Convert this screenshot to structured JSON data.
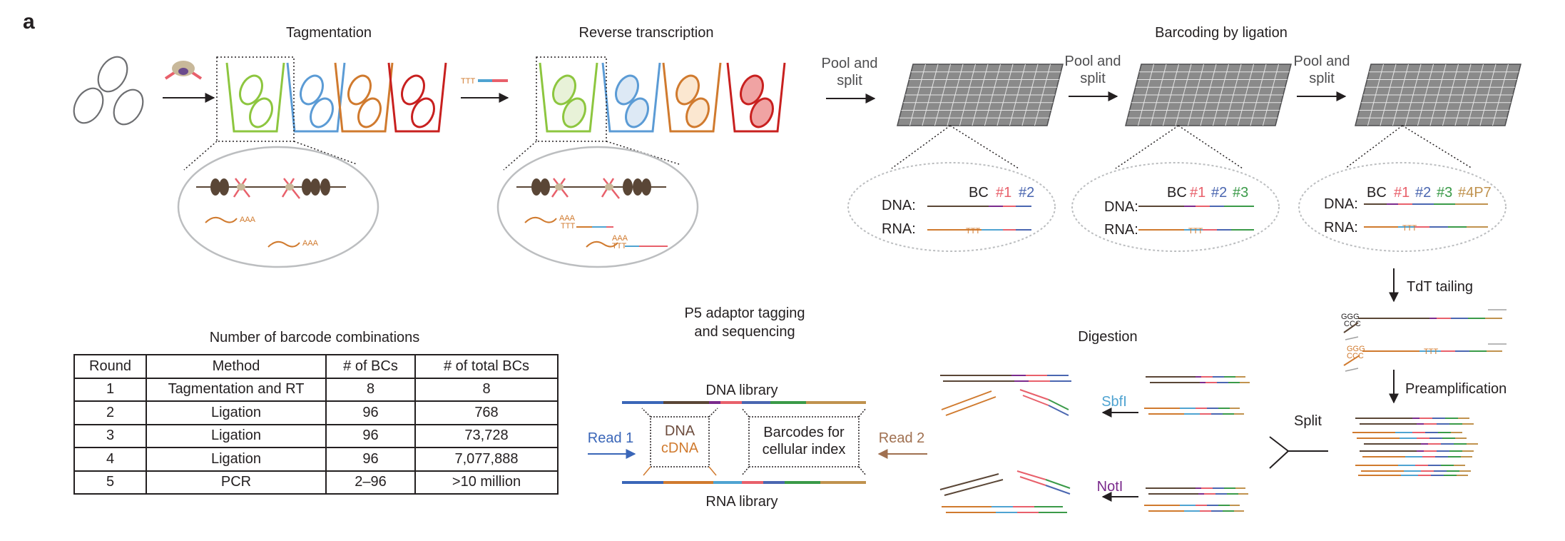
{
  "panel_label": "a",
  "steps": {
    "tagmentation": "Tagmentation",
    "reverse_transcription": "Reverse transcription",
    "barcoding": "Barcoding by ligation",
    "pool_split_1a": "Pool and",
    "pool_split_1b": "split",
    "pool_split_2a": "Pool and",
    "pool_split_2b": "split",
    "pool_split_3a": "Pool and",
    "pool_split_3b": "split",
    "tdt": "TdT tailing",
    "preamp": "Preamplification",
    "split": "Split",
    "digestion": "Digestion",
    "p5_line1": "P5 adaptor tagging",
    "p5_line2": "and sequencing"
  },
  "zoom1": {
    "aaa": "AAA"
  },
  "zoom2": {
    "aaa": "AAA",
    "ttt": "TTT"
  },
  "rt_primer_ttt": "TTT",
  "barcode_circles": [
    {
      "dna": "DNA:",
      "rna": "RNA:",
      "bc": "BC",
      "b1": "#1",
      "b2": "#2",
      "b3": "",
      "b4": "",
      "ttt": "TTT"
    },
    {
      "dna": "DNA:",
      "rna": "RNA:",
      "bc": "BC",
      "b1": "#1",
      "b2": "#2",
      "b3": "#3",
      "b4": "",
      "ttt": "TTT"
    },
    {
      "dna": "DNA:",
      "rna": "RNA:",
      "bc": "BC",
      "b1": "#1",
      "b2": "#2",
      "b3": "#3",
      "b4": "#4P7",
      "ttt": "TTT"
    }
  ],
  "tdt_labels": {
    "ggg1": "GGG",
    "ccc1": "CCC",
    "ggg2": "GGG",
    "ccc2": "CCC",
    "ttt": "TTT"
  },
  "enzymes": {
    "sbfi": "SbfI",
    "noti": "NotI"
  },
  "library": {
    "dna_library": "DNA library",
    "rna_library": "RNA library",
    "read1": "Read 1",
    "read2": "Read 2",
    "box1_line1": "DNA",
    "box1_line2": "cDNA",
    "box2_line1": "Barcodes for",
    "box2_line2": "cellular index"
  },
  "table": {
    "title": "Number of barcode combinations",
    "headers": [
      "Round",
      "Method",
      "# of BCs",
      "# of total BCs"
    ],
    "rows": [
      [
        "1",
        "Tagmentation and RT",
        "8",
        "8"
      ],
      [
        "2",
        "Ligation",
        "96",
        "768"
      ],
      [
        "3",
        "Ligation",
        "96",
        "73,728"
      ],
      [
        "4",
        "Ligation",
        "96",
        "7,077,888"
      ],
      [
        "5",
        "PCR",
        "2–96",
        ">10 million"
      ]
    ]
  },
  "colors": {
    "green": "#8dc63f",
    "blue": "#5b9bd5",
    "orange": "#d07a2e",
    "red": "#c8201f",
    "grey_grid": "#8a8a8a",
    "bc1": "#e8606b",
    "bc2": "#4a66b0",
    "bc3": "#3a9a48",
    "bc4": "#c0924e",
    "dna_strand": "#5a4636",
    "rna_strand": "#d07a2e",
    "sbfi": "#4fa3d1",
    "noti": "#7a2a8c",
    "read1": "#3a66b8",
    "read2": "#a07050"
  }
}
